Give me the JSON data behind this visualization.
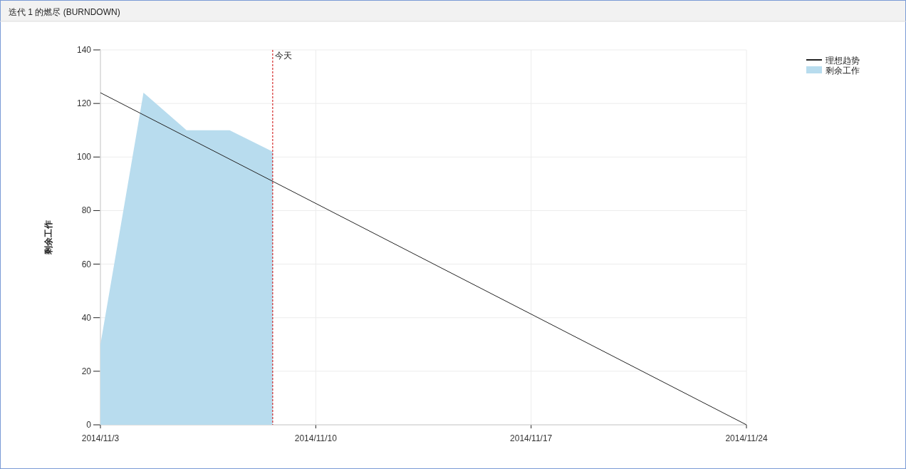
{
  "chart_data": {
    "type": "area",
    "title": "迭代 1 的燃尽 (BURNDOWN)",
    "ylabel": "剩余工作",
    "xlim": [
      "2014-11-03",
      "2014-11-24"
    ],
    "xticks": [
      {
        "value": "2014-11-03",
        "label": "2014/11/3"
      },
      {
        "value": "2014-11-10",
        "label": "2014/11/10"
      },
      {
        "value": "2014-11-17",
        "label": "2014/11/17"
      },
      {
        "value": "2014-11-24",
        "label": "2014/11/24"
      }
    ],
    "ylim": [
      0,
      140
    ],
    "yticks": [
      0,
      20,
      40,
      60,
      80,
      100,
      120,
      140
    ],
    "series": [
      {
        "name": "理想趋势",
        "type": "line",
        "color": "#222222",
        "x": [
          "2014-11-03",
          "2014-11-24"
        ],
        "values": [
          124,
          0
        ]
      },
      {
        "name": "剩余工作",
        "color": "#b8dcee",
        "x": [
          "2014-11-03",
          "2014-11-04T09:36",
          "2014-11-05T19:12",
          "2014-11-07T04:48",
          "2014-11-08T14:24"
        ],
        "values": [
          30,
          124,
          110,
          110,
          102
        ]
      }
    ],
    "ref_lines": [
      {
        "axis": "x",
        "value": "2014-11-08T14:24",
        "label": "今天",
        "color": "#cc0000",
        "line_style": "dashed"
      }
    ],
    "grid": true,
    "legend": "top right"
  }
}
